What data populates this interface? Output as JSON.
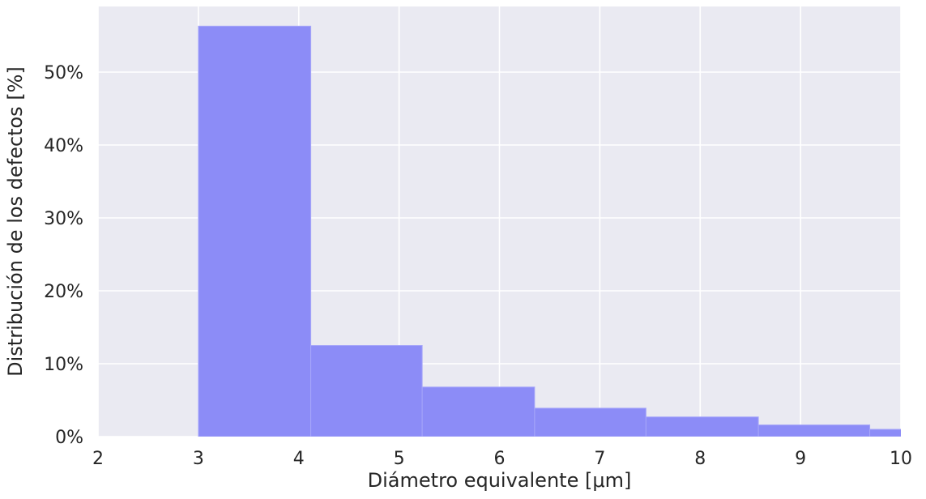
{
  "chart_data": {
    "type": "bar",
    "xlabel": "Diámetro equivalente [μm]",
    "ylabel": "Distribución de los defectos [%]",
    "xlim": [
      2,
      10
    ],
    "ylim": [
      0,
      59
    ],
    "x_ticks": [
      2,
      3,
      4,
      5,
      6,
      7,
      8,
      9,
      10
    ],
    "x_tick_labels": [
      "2",
      "3",
      "4",
      "5",
      "6",
      "7",
      "8",
      "9",
      "10"
    ],
    "y_ticks": [
      0,
      10,
      20,
      30,
      40,
      50
    ],
    "y_tick_labels": [
      "0%",
      "10%",
      "20%",
      "30%",
      "40%",
      "50%"
    ],
    "grid": true,
    "bins": [
      {
        "x0": 3.0,
        "x1": 4.12,
        "value": 56.3
      },
      {
        "x0": 4.12,
        "x1": 5.23,
        "value": 12.5
      },
      {
        "x0": 5.23,
        "x1": 6.35,
        "value": 6.8
      },
      {
        "x0": 6.35,
        "x1": 7.46,
        "value": 3.9
      },
      {
        "x0": 7.46,
        "x1": 8.58,
        "value": 2.7
      },
      {
        "x0": 8.58,
        "x1": 9.69,
        "value": 1.6
      },
      {
        "x0": 9.69,
        "x1": 10.81,
        "value": 1.0
      }
    ],
    "colors": {
      "background": "#eaeaf2",
      "grid": "#ffffff",
      "bar": "#8c8cf7",
      "bar_edge": "#a6a6f9"
    }
  }
}
